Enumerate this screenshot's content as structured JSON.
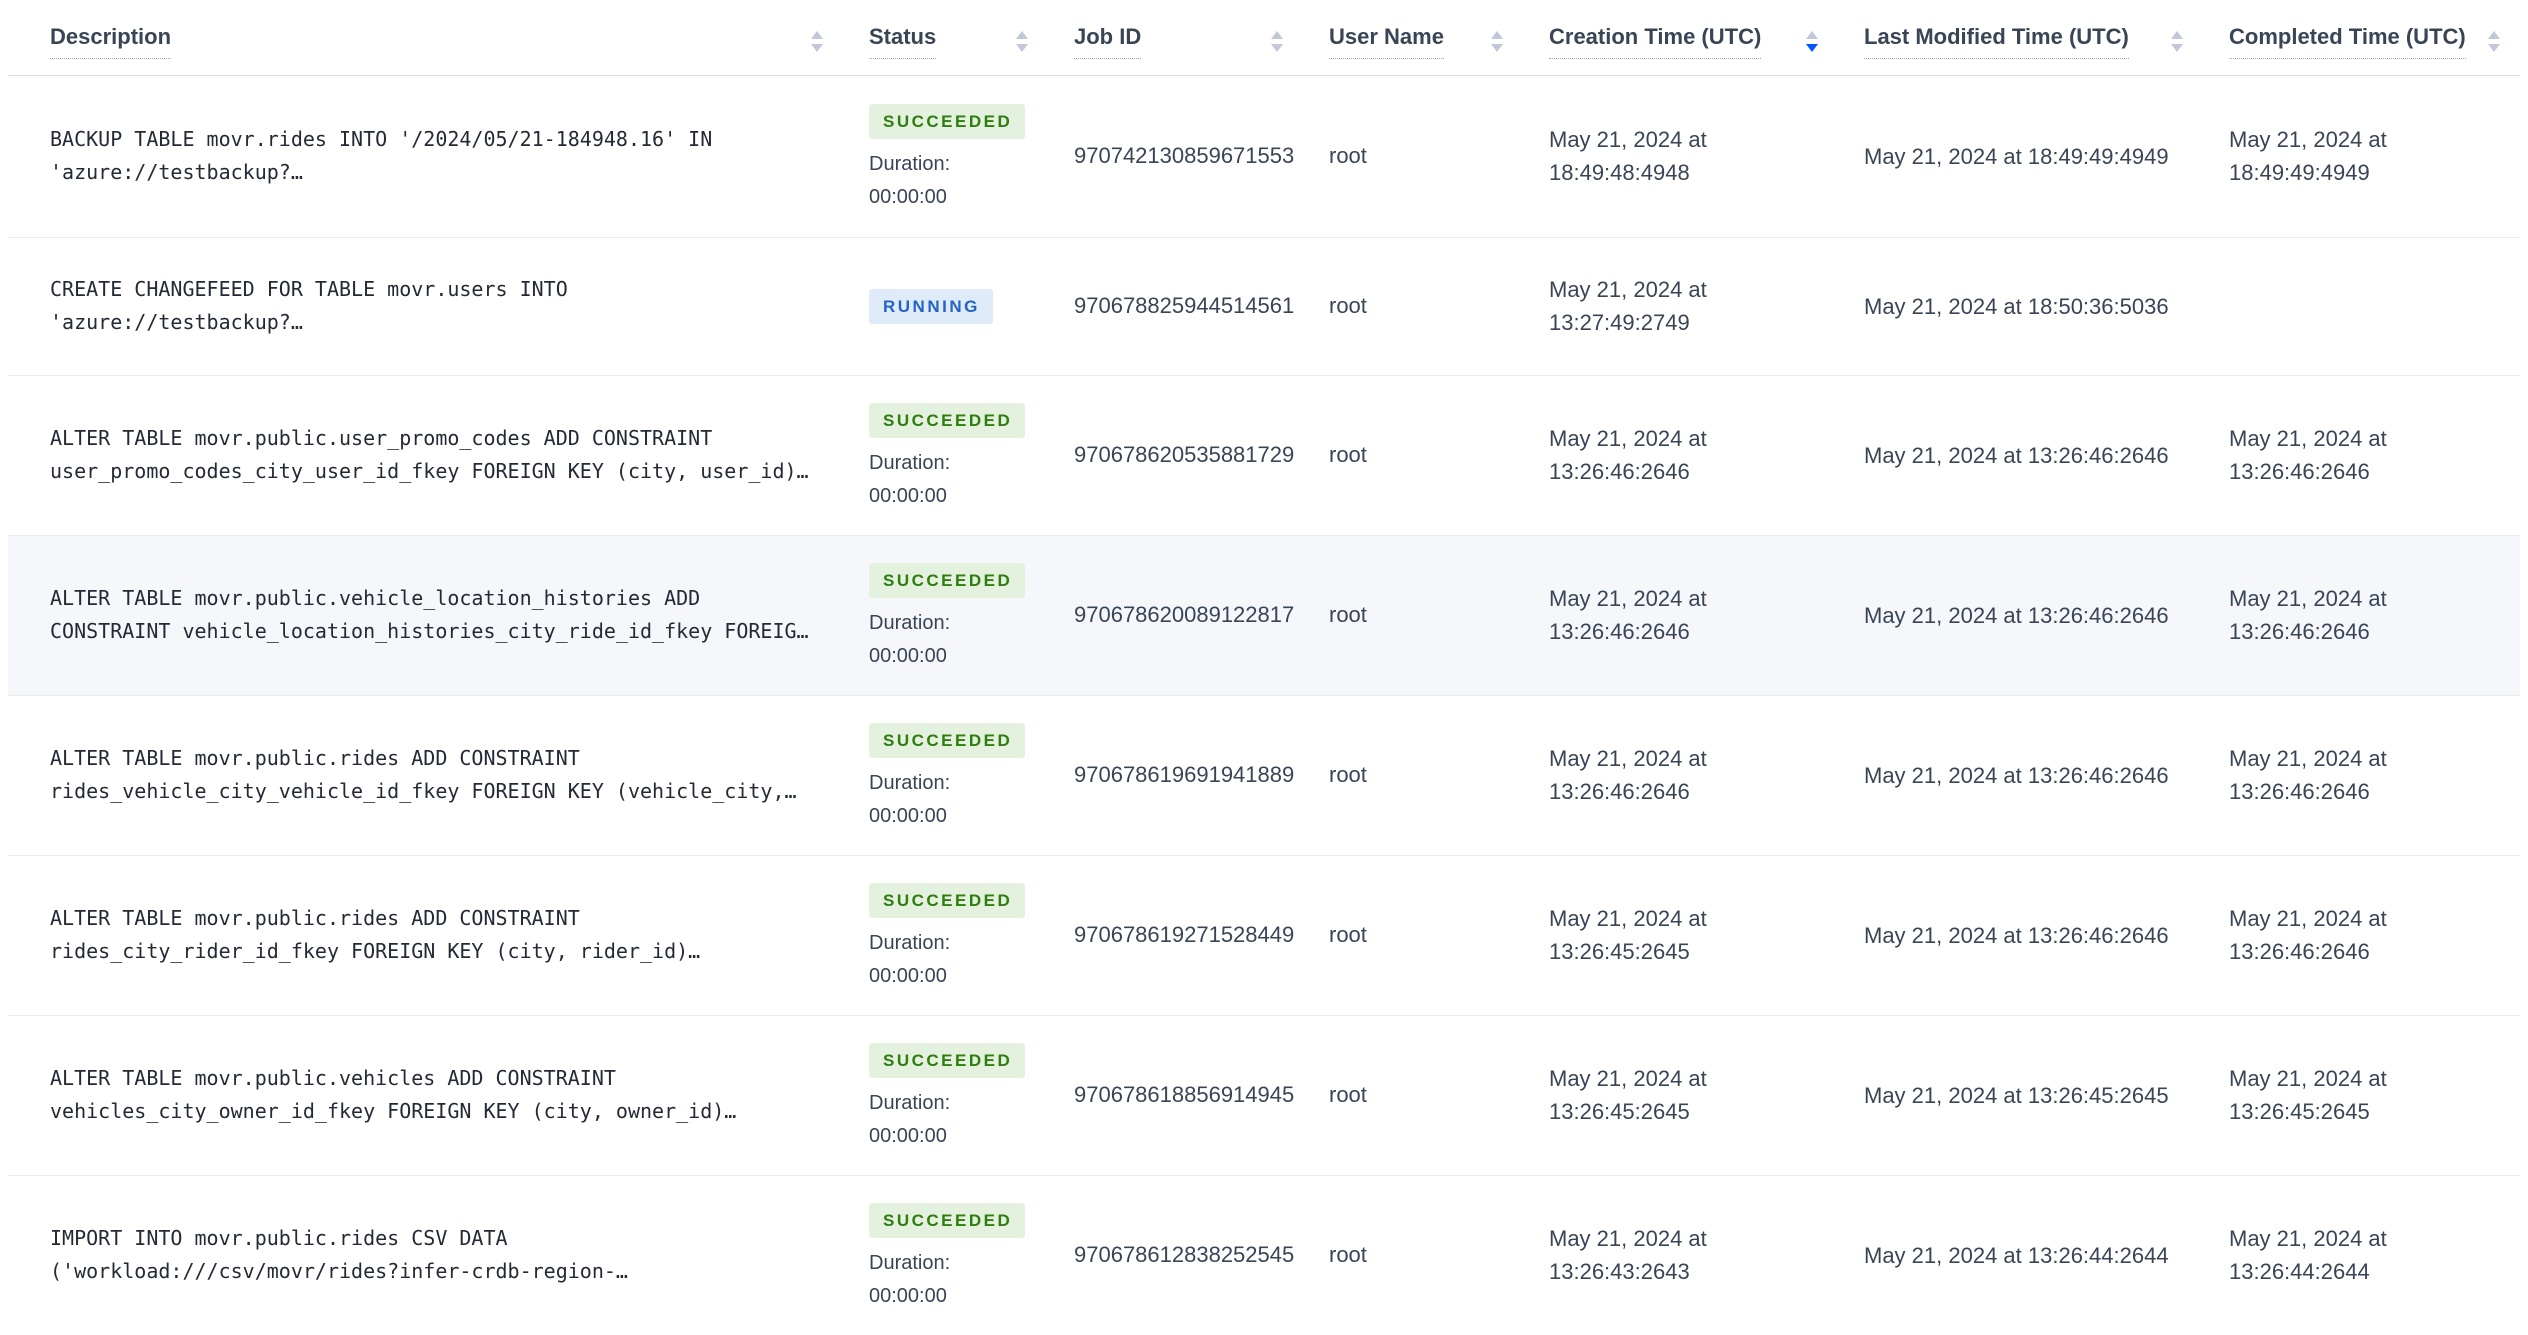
{
  "header": {
    "columns": [
      {
        "label": "Description",
        "sort": "none"
      },
      {
        "label": "Status",
        "sort": "none"
      },
      {
        "label": "Job ID",
        "sort": "none"
      },
      {
        "label": "User Name",
        "sort": "none"
      },
      {
        "label": "Creation Time (UTC)",
        "sort": "desc"
      },
      {
        "label": "Last Modified Time (UTC)",
        "sort": "none"
      },
      {
        "label": "Completed Time (UTC)",
        "sort": "none"
      }
    ]
  },
  "labels": {
    "duration": "Duration:"
  },
  "colors": {
    "succeeded_text": "#2e7d0e",
    "succeeded_bg": "#e4f1de",
    "running_text": "#2264c5",
    "running_bg": "#e0ebf9",
    "sort_active": "#0055ff",
    "sort_inactive": "#c2c8d9",
    "header_text": "#394455",
    "cell_text": "#394455",
    "description_text": "#242a35",
    "row_highlight_bg": "#f5f7fa"
  },
  "rows": [
    {
      "description": "BACKUP TABLE movr.rides INTO '/2024/05/21-184948.16' IN 'azure://testbackup?…",
      "status": "SUCCEEDED",
      "duration": "00:00:00",
      "job_id": "970742130859671553",
      "user_name": "root",
      "creation_time": "May 21, 2024 at 18:49:48:4948",
      "last_modified_time": "May 21, 2024 at 18:49:49:4949",
      "completed_time": "May 21, 2024 at 18:49:49:4949",
      "highlighted": false
    },
    {
      "description": "CREATE CHANGEFEED FOR TABLE movr.users INTO 'azure://testbackup?…",
      "status": "RUNNING",
      "duration": null,
      "job_id": "970678825944514561",
      "user_name": "root",
      "creation_time": "May 21, 2024 at 13:27:49:2749",
      "last_modified_time": "May 21, 2024 at 18:50:36:5036",
      "completed_time": "",
      "highlighted": false
    },
    {
      "description": "ALTER TABLE movr.public.user_promo_codes ADD CONSTRAINT user_promo_codes_city_user_id_fkey FOREIGN KEY (city, user_id)…",
      "status": "SUCCEEDED",
      "duration": "00:00:00",
      "job_id": "970678620535881729",
      "user_name": "root",
      "creation_time": "May 21, 2024 at 13:26:46:2646",
      "last_modified_time": "May 21, 2024 at 13:26:46:2646",
      "completed_time": "May 21, 2024 at 13:26:46:2646",
      "highlighted": false
    },
    {
      "description": "ALTER TABLE movr.public.vehicle_location_histories ADD CONSTRAINT vehicle_location_histories_city_ride_id_fkey FOREIG…",
      "status": "SUCCEEDED",
      "duration": "00:00:00",
      "job_id": "970678620089122817",
      "user_name": "root",
      "creation_time": "May 21, 2024 at 13:26:46:2646",
      "last_modified_time": "May 21, 2024 at 13:26:46:2646",
      "completed_time": "May 21, 2024 at 13:26:46:2646",
      "highlighted": true
    },
    {
      "description": "ALTER TABLE movr.public.rides ADD CONSTRAINT rides_vehicle_city_vehicle_id_fkey FOREIGN KEY (vehicle_city,…",
      "status": "SUCCEEDED",
      "duration": "00:00:00",
      "job_id": "970678619691941889",
      "user_name": "root",
      "creation_time": "May 21, 2024 at 13:26:46:2646",
      "last_modified_time": "May 21, 2024 at 13:26:46:2646",
      "completed_time": "May 21, 2024 at 13:26:46:2646",
      "highlighted": false
    },
    {
      "description": "ALTER TABLE movr.public.rides ADD CONSTRAINT rides_city_rider_id_fkey FOREIGN KEY (city, rider_id)…",
      "status": "SUCCEEDED",
      "duration": "00:00:00",
      "job_id": "970678619271528449",
      "user_name": "root",
      "creation_time": "May 21, 2024 at 13:26:45:2645",
      "last_modified_time": "May 21, 2024 at 13:26:46:2646",
      "completed_time": "May 21, 2024 at 13:26:46:2646",
      "highlighted": false
    },
    {
      "description": "ALTER TABLE movr.public.vehicles ADD CONSTRAINT vehicles_city_owner_id_fkey FOREIGN KEY (city, owner_id)…",
      "status": "SUCCEEDED",
      "duration": "00:00:00",
      "job_id": "970678618856914945",
      "user_name": "root",
      "creation_time": "May 21, 2024 at 13:26:45:2645",
      "last_modified_time": "May 21, 2024 at 13:26:45:2645",
      "completed_time": "May 21, 2024 at 13:26:45:2645",
      "highlighted": false
    },
    {
      "description": "IMPORT INTO movr.public.rides CSV DATA ('workload:///csv/movr/rides?infer-crdb-region-…",
      "status": "SUCCEEDED",
      "duration": "00:00:00",
      "job_id": "970678612838252545",
      "user_name": "root",
      "creation_time": "May 21, 2024 at 13:26:43:2643",
      "last_modified_time": "May 21, 2024 at 13:26:44:2644",
      "completed_time": "May 21, 2024 at 13:26:44:2644",
      "highlighted": false
    }
  ]
}
